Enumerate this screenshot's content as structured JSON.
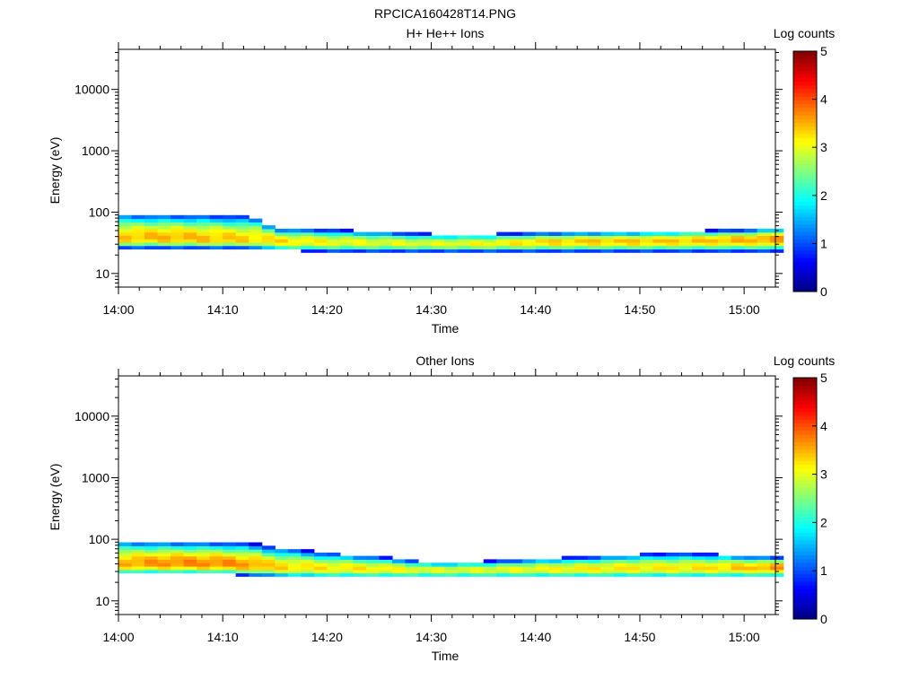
{
  "figure_title": "RPCICA160428T14.PNG",
  "chart_data": [
    {
      "type": "heatmap",
      "title": "H+ He++ Ions",
      "xlabel": "Time",
      "ylabel": "Energy (eV)",
      "xlim": [
        "14:00",
        "15:03"
      ],
      "ylim": [
        6,
        45000
      ],
      "yscale": "log",
      "xticks": [
        "14:00",
        "14:10",
        "14:20",
        "14:30",
        "14:40",
        "14:50",
        "15:00"
      ],
      "yticks": [
        "10",
        "100",
        "1000",
        "10000"
      ],
      "colorbar": {
        "label": "Log counts",
        "ticks": [
          "0",
          "1",
          "2",
          "3",
          "4",
          "5"
        ],
        "range": [
          0,
          5
        ],
        "colormap": "jet"
      },
      "band_log_counts": {
        "time_minutes": [
          0,
          5,
          10,
          13,
          15,
          20,
          25,
          30,
          35,
          40,
          45,
          50,
          55,
          60,
          63
        ],
        "energy_upper_eV": [
          95,
          92,
          90,
          85,
          55,
          52,
          48,
          44,
          44,
          46,
          47,
          48,
          50,
          52,
          55
        ],
        "energy_lower_eV": [
          26,
          26,
          26,
          26,
          24,
          23,
          23,
          23,
          23,
          23,
          23,
          23,
          23,
          23,
          23
        ],
        "peak_energy_eV": [
          38,
          38,
          36,
          36,
          34,
          33,
          32,
          31,
          31,
          33,
          34,
          34,
          35,
          36,
          37
        ],
        "peak_log_counts": [
          3.4,
          3.5,
          3.4,
          3.3,
          3.3,
          3.1,
          3.0,
          3.0,
          3.1,
          3.3,
          3.4,
          3.4,
          3.4,
          3.5,
          3.6
        ]
      }
    },
    {
      "type": "heatmap",
      "title": "Other Ions",
      "xlabel": "Time",
      "ylabel": "Energy (eV)",
      "xlim": [
        "14:00",
        "15:03"
      ],
      "ylim": [
        6,
        45000
      ],
      "yscale": "log",
      "xticks": [
        "14:00",
        "14:10",
        "14:20",
        "14:30",
        "14:40",
        "14:50",
        "15:00"
      ],
      "yticks": [
        "10",
        "100",
        "1000",
        "10000"
      ],
      "colorbar": {
        "label": "Log counts",
        "ticks": [
          "0",
          "1",
          "2",
          "3",
          "4",
          "5"
        ],
        "range": [
          0,
          5
        ],
        "colormap": "jet"
      },
      "band_log_counts": {
        "time_minutes": [
          0,
          5,
          10,
          13,
          15,
          20,
          25,
          30,
          35,
          40,
          45,
          50,
          55,
          60,
          63
        ],
        "energy_upper_eV": [
          95,
          92,
          90,
          85,
          75,
          60,
          52,
          42,
          44,
          48,
          52,
          58,
          60,
          54,
          52
        ],
        "energy_lower_eV": [
          27,
          27,
          27,
          26,
          25,
          24,
          24,
          24,
          24,
          24,
          24,
          24,
          24,
          24,
          24
        ],
        "peak_energy_eV": [
          40,
          41,
          40,
          38,
          35,
          34,
          33,
          32,
          32,
          33,
          33,
          34,
          34,
          35,
          35
        ],
        "peak_log_counts": [
          3.5,
          3.7,
          3.7,
          3.6,
          3.3,
          3.2,
          3.2,
          3.0,
          3.0,
          3.1,
          3.2,
          3.2,
          3.2,
          3.4,
          3.6
        ]
      }
    }
  ]
}
